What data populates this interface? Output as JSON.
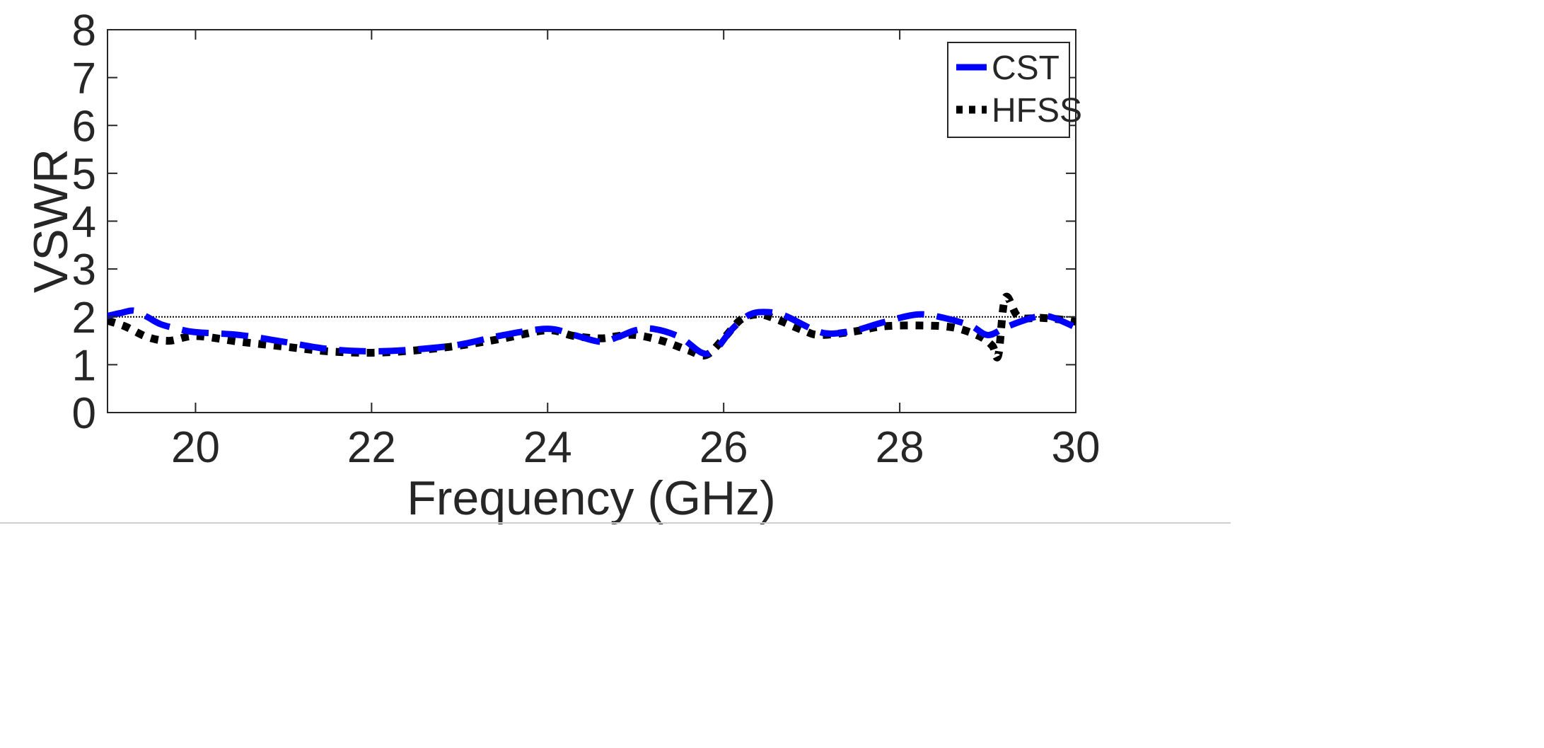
{
  "chart_data": {
    "type": "line",
    "title": "",
    "xlabel": "Frequency (GHz)",
    "ylabel": "VSWR",
    "xlim": [
      19,
      30
    ],
    "ylim": [
      0,
      8
    ],
    "xticks": [
      20,
      22,
      24,
      26,
      28,
      30
    ],
    "yticks": [
      0,
      1,
      2,
      3,
      4,
      5,
      6,
      7,
      8
    ],
    "reference_line_y": 2,
    "grid": false,
    "legend_position": "top-right",
    "series": [
      {
        "name": "CST",
        "color": "#0000ff",
        "style": "dashed",
        "points": [
          [
            19,
            2.02
          ],
          [
            19.15,
            2.08
          ],
          [
            19.3,
            2.13
          ],
          [
            19.45,
            2.0
          ],
          [
            19.6,
            1.85
          ],
          [
            19.8,
            1.75
          ],
          [
            20,
            1.68
          ],
          [
            20.5,
            1.62
          ],
          [
            21,
            1.48
          ],
          [
            21.5,
            1.33
          ],
          [
            22,
            1.28
          ],
          [
            22.5,
            1.32
          ],
          [
            23,
            1.42
          ],
          [
            23.5,
            1.62
          ],
          [
            24,
            1.75
          ],
          [
            24.3,
            1.62
          ],
          [
            24.6,
            1.48
          ],
          [
            24.8,
            1.58
          ],
          [
            25,
            1.72
          ],
          [
            25.2,
            1.75
          ],
          [
            25.5,
            1.58
          ],
          [
            25.75,
            1.25
          ],
          [
            25.9,
            1.3
          ],
          [
            26.1,
            1.75
          ],
          [
            26.3,
            2.05
          ],
          [
            26.5,
            2.1
          ],
          [
            26.7,
            2.02
          ],
          [
            27,
            1.75
          ],
          [
            27.2,
            1.65
          ],
          [
            27.5,
            1.72
          ],
          [
            27.8,
            1.88
          ],
          [
            28.2,
            2.05
          ],
          [
            28.5,
            1.98
          ],
          [
            28.8,
            1.82
          ],
          [
            29.0,
            1.62
          ],
          [
            29.2,
            1.78
          ],
          [
            29.4,
            1.92
          ],
          [
            29.6,
            2.02
          ],
          [
            29.75,
            1.98
          ],
          [
            30,
            1.78
          ]
        ]
      },
      {
        "name": "HFSS",
        "color": "#000000",
        "style": "dotted",
        "points": [
          [
            19,
            1.92
          ],
          [
            19.2,
            1.8
          ],
          [
            19.45,
            1.58
          ],
          [
            19.7,
            1.5
          ],
          [
            20,
            1.6
          ],
          [
            20.5,
            1.48
          ],
          [
            21,
            1.38
          ],
          [
            21.5,
            1.28
          ],
          [
            22,
            1.25
          ],
          [
            22.5,
            1.3
          ],
          [
            23,
            1.4
          ],
          [
            23.5,
            1.55
          ],
          [
            24,
            1.72
          ],
          [
            24.3,
            1.6
          ],
          [
            24.6,
            1.55
          ],
          [
            24.8,
            1.6
          ],
          [
            25,
            1.62
          ],
          [
            25.3,
            1.5
          ],
          [
            25.6,
            1.3
          ],
          [
            25.8,
            1.2
          ],
          [
            26.0,
            1.55
          ],
          [
            26.2,
            1.95
          ],
          [
            26.4,
            2.05
          ],
          [
            26.6,
            1.95
          ],
          [
            26.9,
            1.72
          ],
          [
            27.1,
            1.62
          ],
          [
            27.5,
            1.7
          ],
          [
            27.8,
            1.8
          ],
          [
            28.2,
            1.82
          ],
          [
            28.6,
            1.78
          ],
          [
            28.9,
            1.6
          ],
          [
            29.05,
            1.4
          ],
          [
            29.12,
            1.2
          ],
          [
            29.2,
            2.4
          ],
          [
            29.35,
            2.0
          ],
          [
            29.6,
            1.98
          ],
          [
            29.8,
            1.95
          ],
          [
            30,
            1.9
          ]
        ]
      }
    ]
  }
}
